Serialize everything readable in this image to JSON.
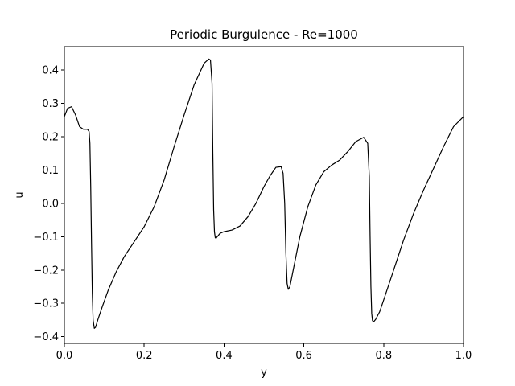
{
  "chart_data": {
    "type": "line",
    "title": "Periodic Burgulence - Re=1000",
    "xlabel": "y",
    "ylabel": "u",
    "xlim": [
      0.0,
      1.0
    ],
    "ylim": [
      -0.42,
      0.47
    ],
    "xticks": [
      {
        "value": 0.0,
        "label": "0.0"
      },
      {
        "value": 0.2,
        "label": "0.2"
      },
      {
        "value": 0.4,
        "label": "0.4"
      },
      {
        "value": 0.6,
        "label": "0.6"
      },
      {
        "value": 0.8,
        "label": "0.8"
      },
      {
        "value": 1.0,
        "label": "1.0"
      }
    ],
    "yticks": [
      {
        "value": -0.4,
        "label": "−0.4"
      },
      {
        "value": -0.3,
        "label": "−0.3"
      },
      {
        "value": -0.2,
        "label": "−0.2"
      },
      {
        "value": -0.1,
        "label": "−0.1"
      },
      {
        "value": 0.0,
        "label": "0.0"
      },
      {
        "value": 0.1,
        "label": "0.1"
      },
      {
        "value": 0.2,
        "label": "0.2"
      },
      {
        "value": 0.3,
        "label": "0.3"
      },
      {
        "value": 0.4,
        "label": "0.4"
      }
    ],
    "grid": false,
    "line_color": "#000000",
    "series": [
      {
        "x": [
          0.0,
          0.008,
          0.018,
          0.028,
          0.038,
          0.048,
          0.058,
          0.062,
          0.064,
          0.066,
          0.068,
          0.07,
          0.072,
          0.075,
          0.078,
          0.085,
          0.095,
          0.11,
          0.13,
          0.15,
          0.175,
          0.2,
          0.225,
          0.25,
          0.275,
          0.3,
          0.325,
          0.35,
          0.362,
          0.366,
          0.37,
          0.372,
          0.374,
          0.376,
          0.378,
          0.38,
          0.383,
          0.39,
          0.4,
          0.42,
          0.44,
          0.46,
          0.48,
          0.5,
          0.515,
          0.53,
          0.543,
          0.548,
          0.552,
          0.555,
          0.558,
          0.561,
          0.565,
          0.575,
          0.59,
          0.61,
          0.63,
          0.65,
          0.67,
          0.69,
          0.71,
          0.73,
          0.75,
          0.76,
          0.764,
          0.766,
          0.768,
          0.77,
          0.772,
          0.775,
          0.78,
          0.79,
          0.8,
          0.825,
          0.85,
          0.875,
          0.9,
          0.925,
          0.95,
          0.975,
          1.0
        ],
        "y": [
          0.26,
          0.285,
          0.29,
          0.265,
          0.23,
          0.222,
          0.222,
          0.215,
          0.18,
          0.05,
          -0.12,
          -0.27,
          -0.35,
          -0.375,
          -0.372,
          -0.345,
          -0.31,
          -0.26,
          -0.205,
          -0.16,
          -0.115,
          -0.07,
          -0.01,
          0.07,
          0.17,
          0.265,
          0.355,
          0.42,
          0.433,
          0.43,
          0.36,
          0.15,
          -0.02,
          -0.085,
          -0.103,
          -0.105,
          -0.1,
          -0.09,
          -0.085,
          -0.08,
          -0.068,
          -0.04,
          0.0,
          0.05,
          0.082,
          0.108,
          0.11,
          0.09,
          0.0,
          -0.15,
          -0.24,
          -0.258,
          -0.25,
          -0.19,
          -0.1,
          -0.01,
          0.055,
          0.095,
          0.115,
          0.13,
          0.155,
          0.185,
          0.198,
          0.18,
          0.08,
          -0.1,
          -0.25,
          -0.33,
          -0.352,
          -0.355,
          -0.348,
          -0.325,
          -0.29,
          -0.2,
          -0.11,
          -0.03,
          0.04,
          0.105,
          0.17,
          0.23,
          0.26
        ]
      }
    ]
  }
}
